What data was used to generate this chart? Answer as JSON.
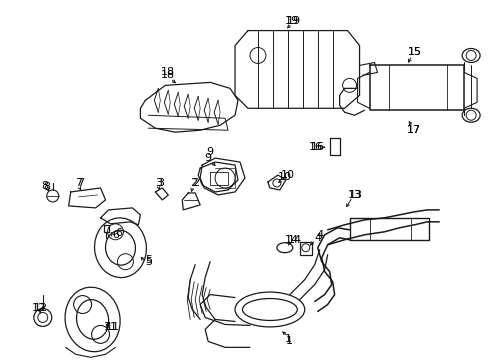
{
  "background_color": "#ffffff",
  "line_color": "#1a1a1a",
  "text_color": "#000000",
  "lw": 0.9,
  "figsize": [
    4.89,
    3.6
  ],
  "dpi": 100,
  "xlim": [
    0,
    489
  ],
  "ylim": [
    0,
    360
  ]
}
